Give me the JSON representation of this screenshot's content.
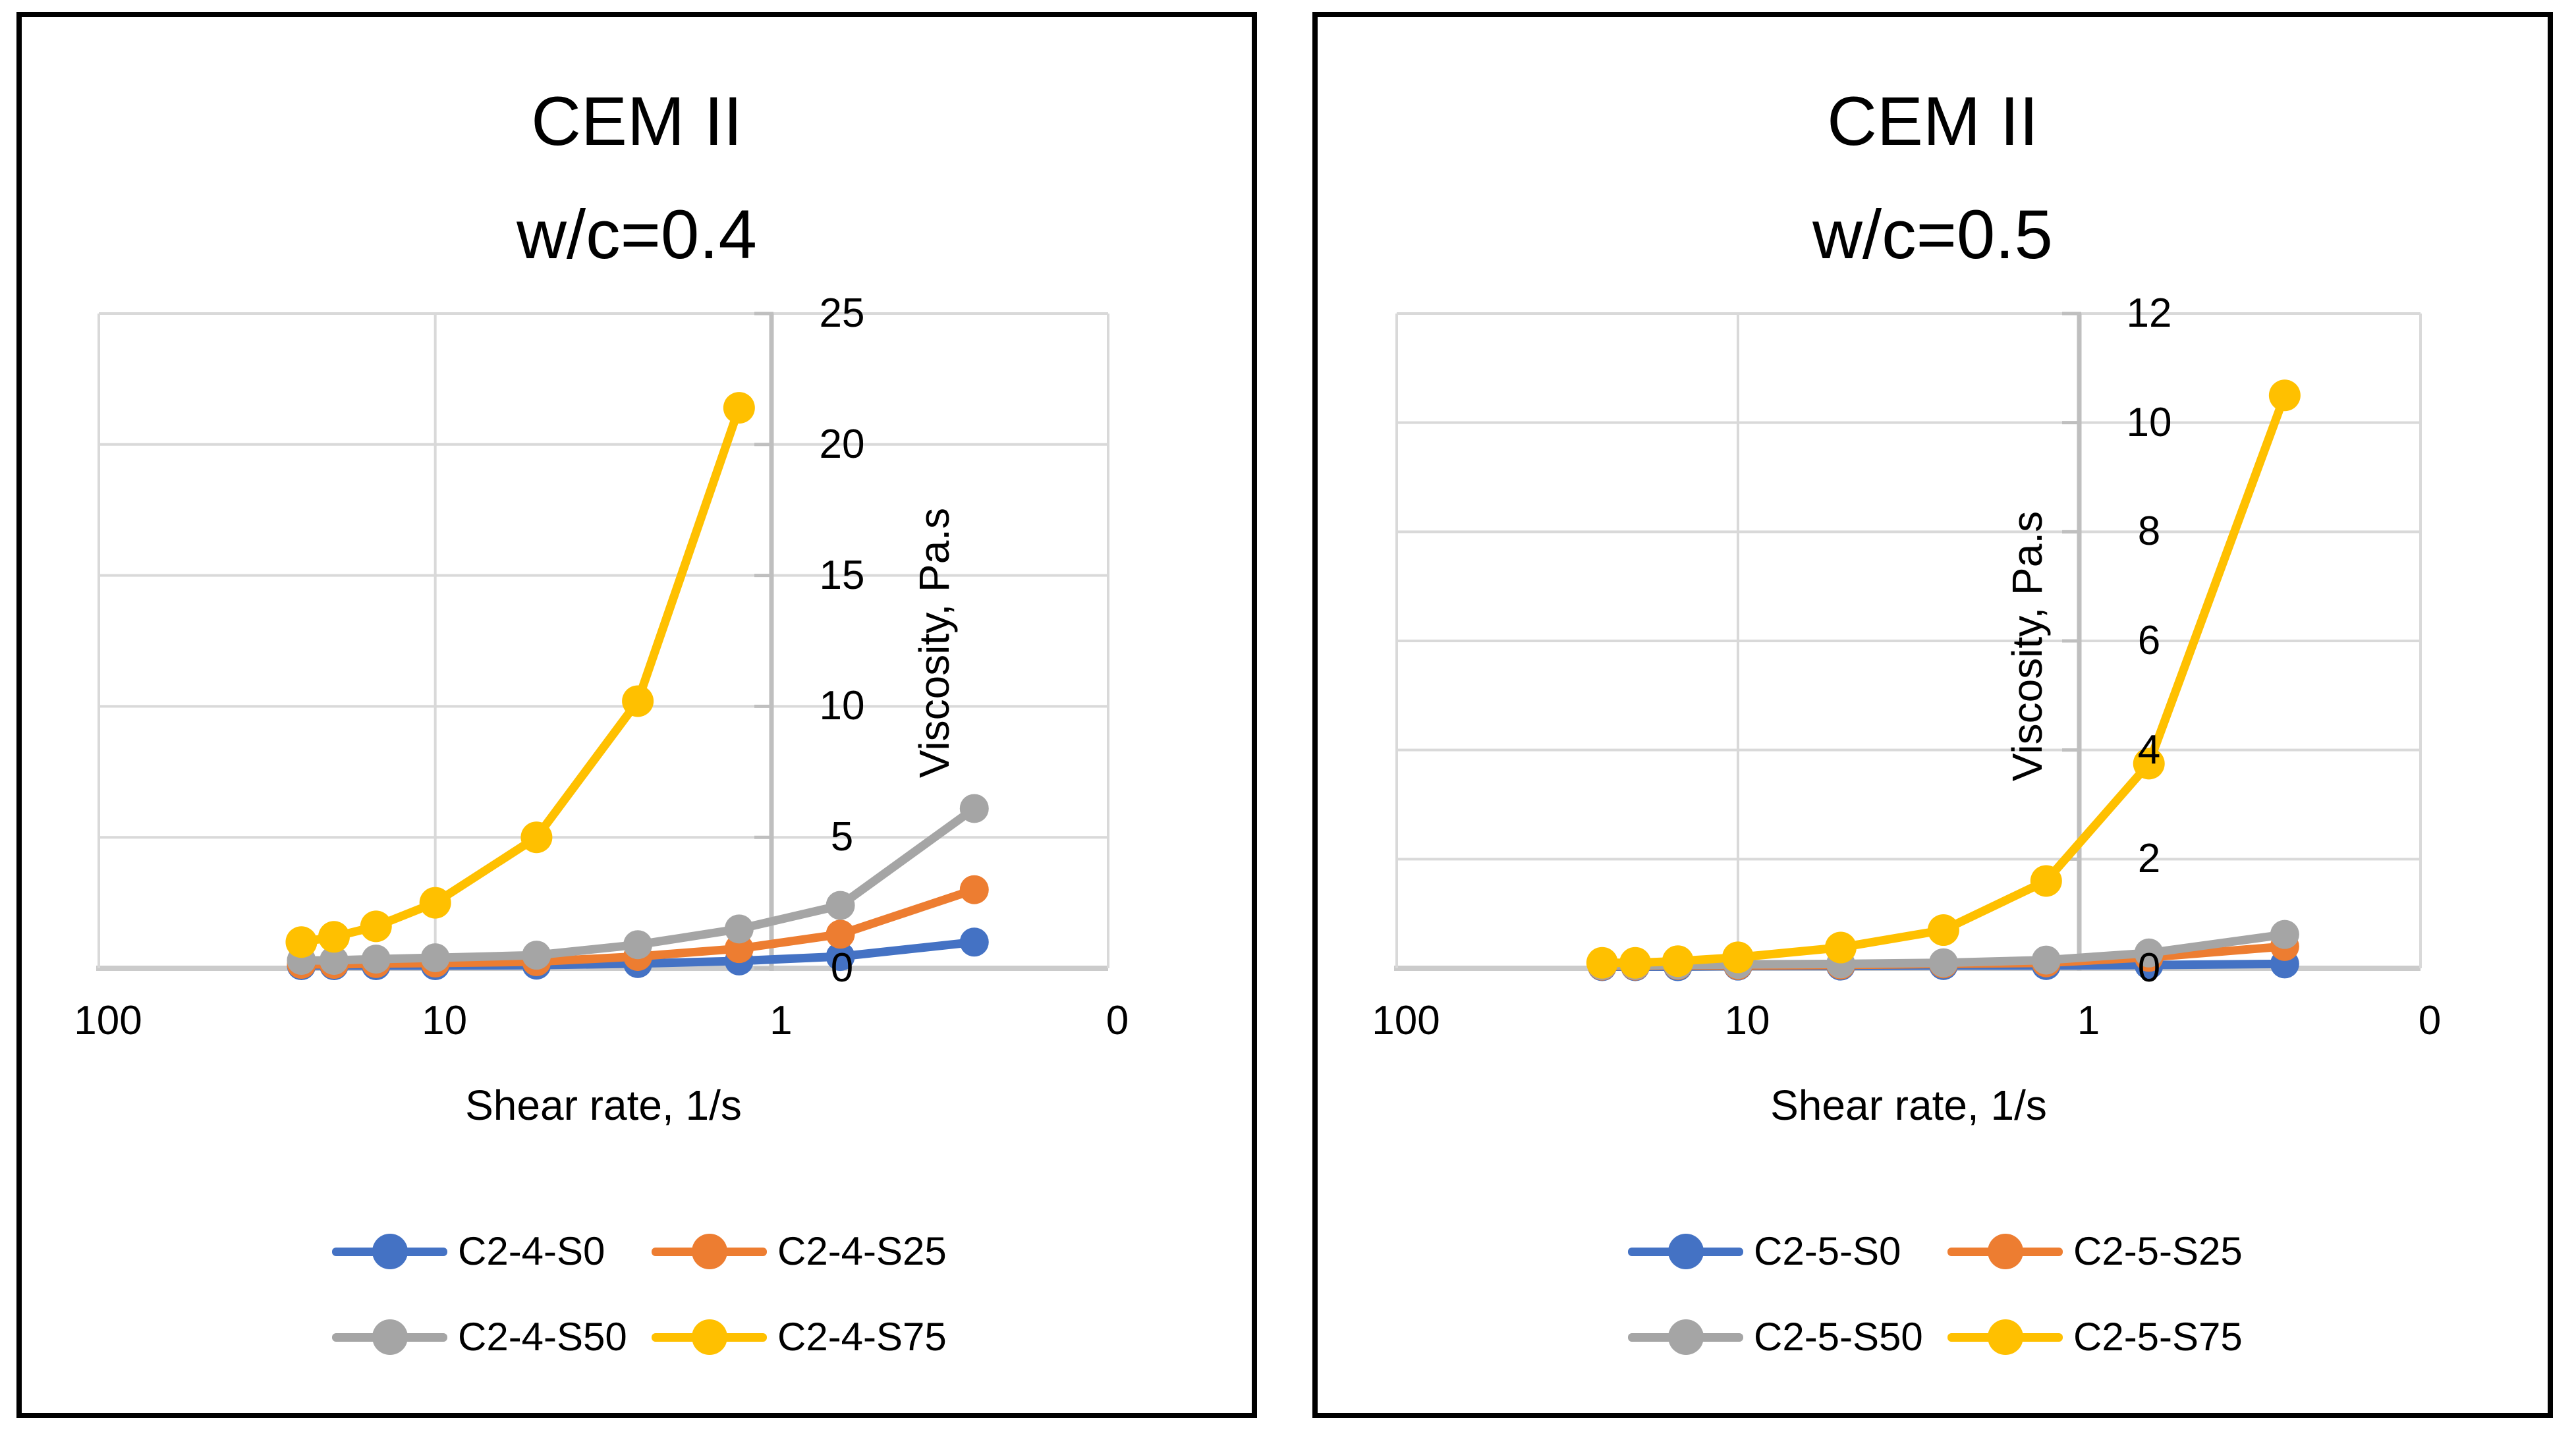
{
  "styles": {
    "gridline_color": "#D9D9D9",
    "bottom_axis_color": "#CBCBCB",
    "value_axis_color": "#BFBFBF",
    "text_color": "#000000",
    "panel_border_color": "#000000",
    "background_color": "#FFFFFF"
  },
  "chart_data": [
    {
      "type": "line",
      "title_lines": [
        "CEM II",
        "w/c=0.4"
      ],
      "xlabel": "Shear rate, 1/s",
      "ylabel": "Viscosity, Pa.s",
      "x_scale": "log10-reversed",
      "x_range": [
        100,
        0.1
      ],
      "x_tick_labels": [
        "100",
        "10",
        "1",
        "0"
      ],
      "ylim": [
        0,
        25
      ],
      "y_tick_labels": [
        "25",
        "20",
        "15",
        "10",
        "5",
        "0"
      ],
      "grid": true,
      "legend_position": "bottom",
      "x": [
        25,
        20,
        15,
        10,
        5,
        2.5,
        1.25,
        0.625,
        0.25
      ],
      "series": [
        {
          "name": "C2-4-S0",
          "color": "#4472C4",
          "values": [
            0.1,
            0.1,
            0.1,
            0.1,
            0.12,
            0.18,
            0.28,
            0.45,
            1.0
          ]
        },
        {
          "name": "C2-4-S25",
          "color": "#ED7D31",
          "values": [
            0.15,
            0.15,
            0.18,
            0.2,
            0.25,
            0.45,
            0.75,
            1.3,
            3.0
          ]
        },
        {
          "name": "C2-4-S50",
          "color": "#A5A5A5",
          "values": [
            0.3,
            0.3,
            0.35,
            0.4,
            0.5,
            0.9,
            1.5,
            2.4,
            6.1
          ]
        },
        {
          "name": "C2-4-S75",
          "color": "#FFC000",
          "values": [
            1.0,
            1.2,
            1.6,
            2.5,
            5.0,
            10.2,
            21.4
          ]
        }
      ]
    },
    {
      "type": "line",
      "title_lines": [
        "CEM II",
        "w/c=0.5"
      ],
      "xlabel": "Shear rate, 1/s",
      "ylabel": "Viscosity, Pa.s",
      "x_scale": "log10-reversed",
      "x_range": [
        100,
        0.1
      ],
      "x_tick_labels": [
        "100",
        "10",
        "1",
        "0"
      ],
      "ylim": [
        0,
        12
      ],
      "y_tick_labels": [
        "12",
        "10",
        "8",
        "6",
        "4",
        "2",
        "0"
      ],
      "grid": true,
      "legend_position": "bottom",
      "x": [
        25,
        20,
        15,
        10,
        5,
        2.5,
        1.25,
        0.625,
        0.25
      ],
      "series": [
        {
          "name": "C2-5-S0",
          "color": "#4472C4",
          "values": [
            0.03,
            0.03,
            0.03,
            0.04,
            0.04,
            0.05,
            0.05,
            0.06,
            0.08
          ]
        },
        {
          "name": "C2-5-S25",
          "color": "#ED7D31",
          "values": [
            0.04,
            0.04,
            0.05,
            0.05,
            0.06,
            0.08,
            0.1,
            0.2,
            0.4
          ]
        },
        {
          "name": "C2-5-S50",
          "color": "#A5A5A5",
          "values": [
            0.05,
            0.05,
            0.06,
            0.07,
            0.08,
            0.1,
            0.15,
            0.28,
            0.62
          ]
        },
        {
          "name": "C2-5-S75",
          "color": "#FFC000",
          "values": [
            0.1,
            0.1,
            0.13,
            0.2,
            0.38,
            0.7,
            1.6,
            3.75,
            10.5
          ]
        }
      ]
    }
  ]
}
